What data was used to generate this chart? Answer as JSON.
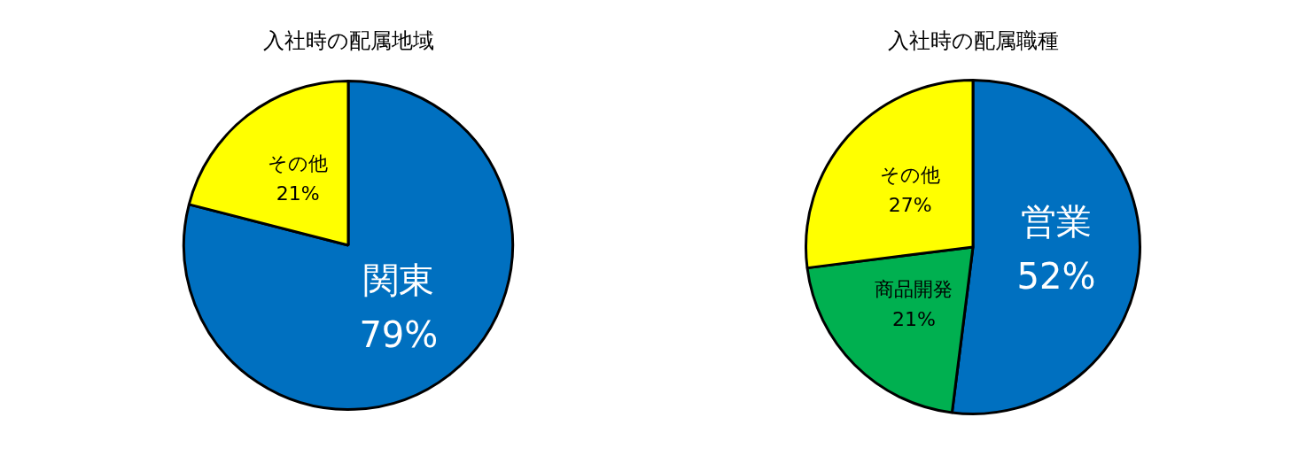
{
  "chart_data": [
    {
      "type": "pie",
      "title": "入社時の配属地域",
      "categories": [
        "関東",
        "その他"
      ],
      "values": [
        79,
        21
      ],
      "value_labels": [
        "79%",
        "21%"
      ],
      "colors": [
        "#0070c0",
        "#ffff00"
      ],
      "legend": false
    },
    {
      "type": "pie",
      "title": "入社時の配属職種",
      "categories": [
        "営業",
        "商品開発",
        "その他"
      ],
      "values": [
        52,
        21,
        27
      ],
      "value_labels": [
        "52%",
        "21%",
        "27%"
      ],
      "colors": [
        "#0070c0",
        "#00b050",
        "#ffff00"
      ],
      "legend": false
    }
  ]
}
